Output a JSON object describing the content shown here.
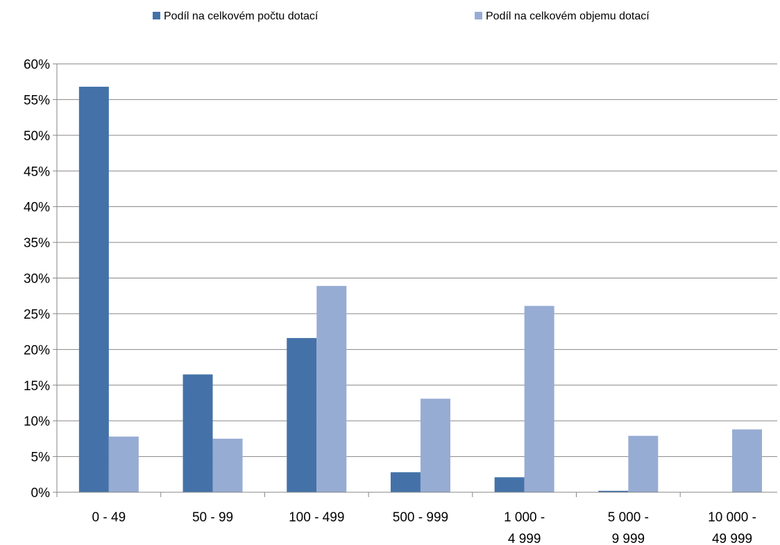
{
  "chart_data": {
    "type": "bar",
    "categories": [
      [
        "0 - 49"
      ],
      [
        "50 - 99"
      ],
      [
        "100 - 499"
      ],
      [
        "500 - 999"
      ],
      [
        "1 000 -",
        "4 999"
      ],
      [
        "5 000 -",
        "9 999"
      ],
      [
        "10 000 -",
        "49 999"
      ]
    ],
    "series": [
      {
        "name": "Podíl na celkovém počtu dotací",
        "color": "#4472A8",
        "values": [
          56.8,
          16.5,
          21.6,
          2.8,
          2.1,
          0.2,
          0.02
        ]
      },
      {
        "name": "Podíl na celkovém objemu dotací",
        "color": "#97ACD3",
        "values": [
          7.8,
          7.5,
          28.9,
          13.1,
          26.1,
          7.9,
          8.8
        ]
      }
    ],
    "y_ticks": [
      "0%",
      "5%",
      "10%",
      "15%",
      "20%",
      "25%",
      "30%",
      "35%",
      "40%",
      "45%",
      "50%",
      "55%",
      "60%"
    ],
    "ylim": [
      0,
      60
    ],
    "grid": true,
    "legend_position": "top"
  }
}
